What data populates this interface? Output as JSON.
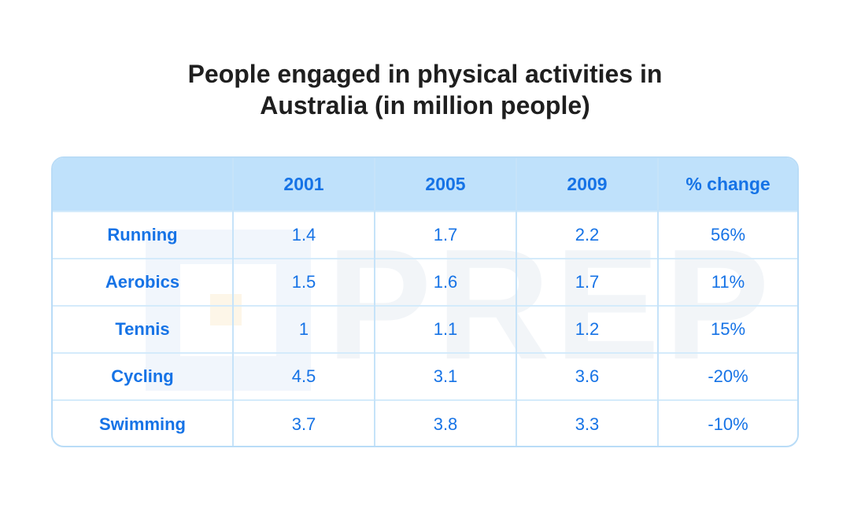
{
  "chart_data": {
    "type": "table",
    "title_lines": [
      "People engaged in physical activities in",
      "Australia (in million people)"
    ],
    "columns": [
      "",
      "2001",
      "2005",
      "2009",
      "% change"
    ],
    "rows": [
      {
        "label": "Running",
        "values": [
          "1.4",
          "1.7",
          "2.2",
          "56%"
        ]
      },
      {
        "label": "Aerobics",
        "values": [
          "1.5",
          "1.6",
          "1.7",
          "11%"
        ]
      },
      {
        "label": "Tennis",
        "values": [
          "1",
          "1.1",
          "1.2",
          "15%"
        ]
      },
      {
        "label": "Cycling",
        "values": [
          "4.5",
          "3.1",
          "3.6",
          "-20%"
        ]
      },
      {
        "label": "Swimming",
        "values": [
          "3.7",
          "3.8",
          "3.3",
          "-10%"
        ]
      }
    ]
  },
  "watermark": {
    "text": "PREP"
  },
  "colors": {
    "header_bg": "#bfe1fb",
    "accent_text": "#1673e6",
    "title_text": "#1f1f1f",
    "border": "#b9dcf7"
  }
}
